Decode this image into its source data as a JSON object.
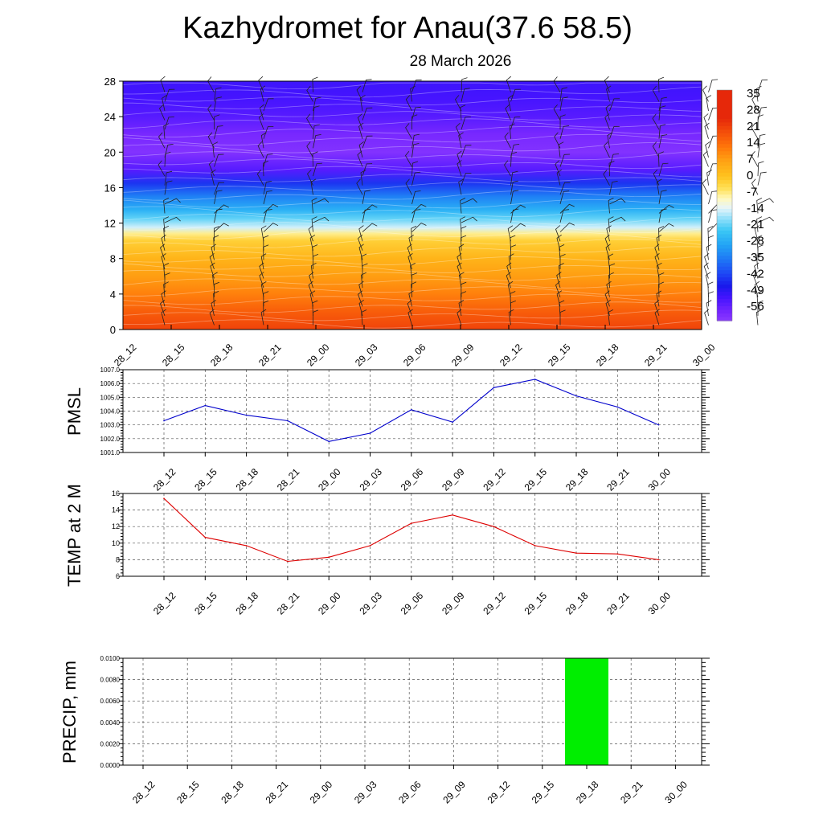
{
  "title": "Kazhydromet for Anau(37.6 58.5)",
  "subtitle": "28 March 2026",
  "time_labels": [
    "28_12",
    "28_15",
    "28_18",
    "28_21",
    "29_00",
    "29_03",
    "29_06",
    "29_09",
    "29_12",
    "29_15",
    "29_18",
    "29_21",
    "30_00"
  ],
  "colors": {
    "pmsl_line": "#0000cc",
    "temp_line": "#dd0000",
    "precip_bar": "#00ee00",
    "grid": "#555555"
  },
  "chart_data": [
    {
      "type": "heatmap",
      "x": [
        "28_12",
        "28_15",
        "28_18",
        "28_21",
        "29_00",
        "29_03",
        "29_06",
        "29_09",
        "29_12",
        "29_15",
        "29_18",
        "29_21",
        "30_00"
      ],
      "ylim": [
        0,
        28
      ],
      "y_ticks": [
        "0",
        "4",
        "8",
        "12",
        "16",
        "20",
        "24",
        "28"
      ],
      "colorbar_labels": [
        "35",
        "28",
        "21",
        "14",
        "7",
        "0",
        "-7",
        "-14",
        "-21",
        "-28",
        "-35",
        "-42",
        "-49",
        "-56"
      ],
      "levels": [
        0,
        2,
        4,
        6,
        8,
        10,
        10.8,
        11.5,
        12.5,
        13.5,
        15,
        16.5,
        18,
        20,
        22,
        24,
        26,
        28
      ],
      "level_values": [
        20,
        16,
        11,
        7,
        3,
        -2,
        -7,
        -14,
        -20,
        -26,
        -33,
        -42,
        -52,
        -58,
        -56,
        -52,
        -50,
        -49
      ],
      "wind_barbs": true
    },
    {
      "type": "line",
      "ylabel": "PMSL",
      "x": [
        "28_12",
        "28_15",
        "28_18",
        "28_21",
        "29_00",
        "29_03",
        "29_06",
        "29_09",
        "29_12",
        "29_15",
        "29_18",
        "29_21",
        "30_00"
      ],
      "values": [
        1003.3,
        1004.4,
        1003.7,
        1003.3,
        1001.8,
        1002.4,
        1004.1,
        1003.2,
        1005.7,
        1006.3,
        1005.1,
        1004.3,
        1003.0
      ],
      "ylim": [
        1001.0,
        1007.0
      ],
      "y_ticks": [
        "1001.0",
        "1002.0",
        "1003.0",
        "1004.0",
        "1005.0",
        "1006.0",
        "1007.0"
      ],
      "grid": true
    },
    {
      "type": "line",
      "ylabel": "TEMP at 2 M",
      "x": [
        "28_12",
        "28_15",
        "28_18",
        "28_21",
        "29_00",
        "29_03",
        "29_06",
        "29_09",
        "29_12",
        "29_15",
        "29_18",
        "29_21",
        "30_00"
      ],
      "values": [
        15.4,
        10.7,
        9.7,
        7.8,
        8.3,
        9.7,
        12.4,
        13.4,
        12.0,
        9.7,
        8.8,
        8.7,
        8.0
      ],
      "ylim": [
        6,
        16
      ],
      "y_ticks": [
        "6",
        "8",
        "10",
        "12",
        "14",
        "16"
      ],
      "grid": true
    },
    {
      "type": "bar",
      "ylabel": "PRECIP, mm",
      "categories": [
        "28_12",
        "28_15",
        "28_18",
        "28_21",
        "29_00",
        "29_03",
        "29_06",
        "29_09",
        "29_12",
        "29_15",
        "29_18",
        "29_21",
        "30_00"
      ],
      "values": [
        0,
        0,
        0,
        0,
        0,
        0,
        0,
        0,
        0,
        0,
        0.01,
        0,
        0
      ],
      "ylim": [
        0,
        0.01
      ],
      "y_ticks": [
        "0.0000",
        "0.0020",
        "0.0040",
        "0.0060",
        "0.0080",
        "0.0100"
      ],
      "grid": true
    }
  ]
}
